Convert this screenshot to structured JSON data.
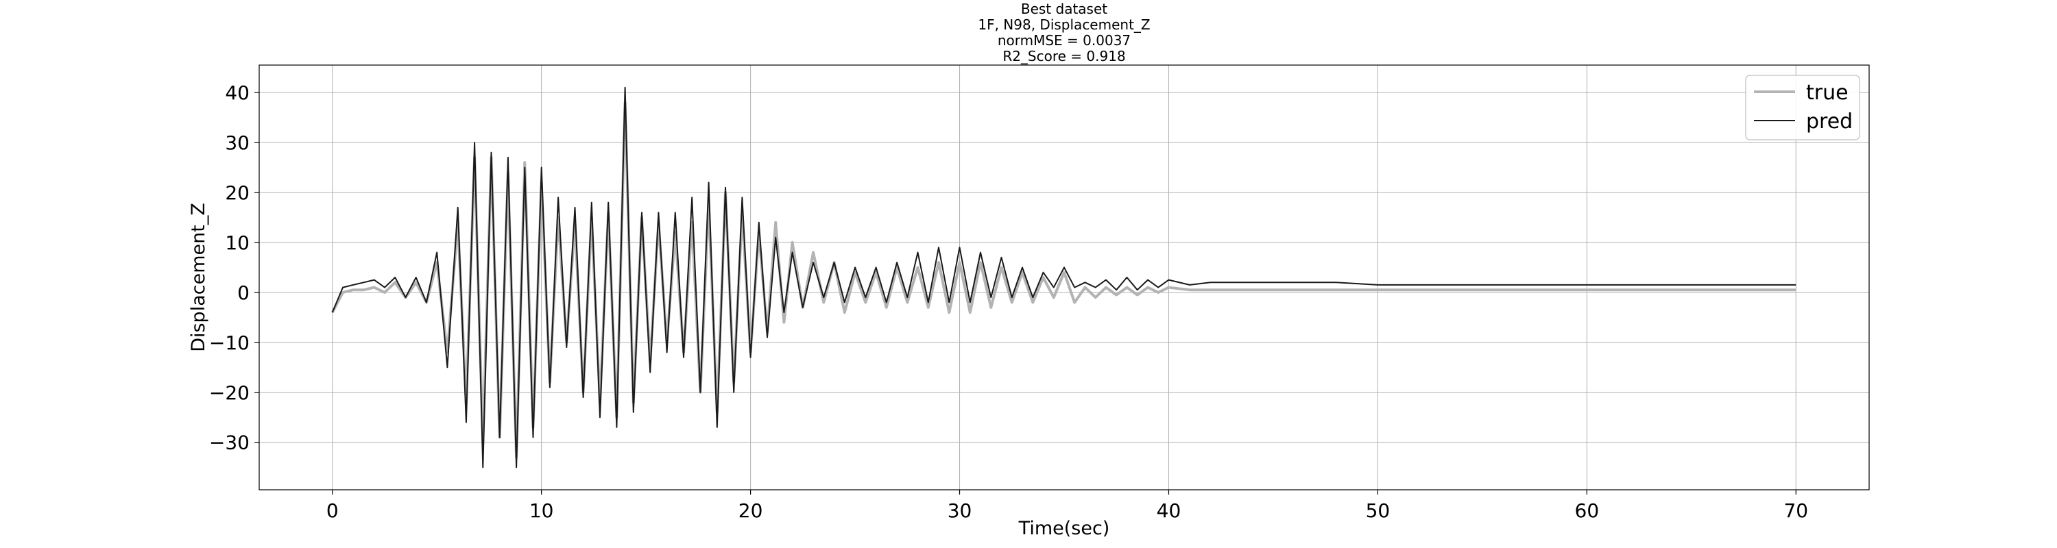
{
  "chart_data": {
    "type": "line",
    "title_lines": [
      "Best dataset",
      "1F, N98, Displacement_Z",
      "normMSE = 0.0037",
      "R2_Score = 0.918"
    ],
    "xlabel": "Time(sec)",
    "ylabel": "Displacement_Z",
    "xlim": [
      -3.5,
      73.5
    ],
    "ylim": [
      -39.5,
      45.5
    ],
    "xticks": [
      0,
      10,
      20,
      30,
      40,
      50,
      60,
      70
    ],
    "yticks": [
      -30,
      -20,
      -10,
      0,
      10,
      20,
      30,
      40
    ],
    "xtick_labels": [
      "0",
      "10",
      "20",
      "30",
      "40",
      "50",
      "60",
      "70"
    ],
    "ytick_labels": [
      "−30",
      "−20",
      "−10",
      "0",
      "10",
      "20",
      "30",
      "40"
    ],
    "grid": true,
    "legend_position": "top-right",
    "series": [
      {
        "name": "true",
        "color": "#b3b3b3",
        "x": [
          0,
          0.5,
          1,
          1.5,
          2,
          2.5,
          3,
          3.5,
          4,
          4.5,
          5,
          5.5,
          6,
          6.4,
          6.8,
          7.2,
          7.6,
          8,
          8.4,
          8.8,
          9.2,
          9.6,
          10,
          10.4,
          10.8,
          11.2,
          11.6,
          12,
          12.4,
          12.8,
          13.2,
          13.6,
          14,
          14.4,
          14.8,
          15.2,
          15.6,
          16,
          16.4,
          16.8,
          17.2,
          17.6,
          18,
          18.4,
          18.8,
          19.2,
          19.6,
          20,
          20.4,
          20.8,
          21.2,
          21.6,
          22,
          22.5,
          23,
          23.5,
          24,
          24.5,
          25,
          25.5,
          26,
          26.5,
          27,
          27.5,
          28,
          28.5,
          29,
          29.5,
          30,
          30.5,
          31,
          31.5,
          32,
          32.5,
          33,
          33.5,
          34,
          34.5,
          35,
          35.5,
          36,
          36.5,
          37,
          37.5,
          38,
          38.5,
          39,
          39.5,
          40,
          41,
          42,
          43,
          44,
          45,
          46,
          48,
          50,
          55,
          60,
          65,
          70
        ],
        "y": [
          -4,
          0,
          0.5,
          0.5,
          1,
          0,
          2,
          -1,
          2,
          -2,
          6,
          -12,
          14,
          -22,
          27,
          -30,
          27,
          -29,
          24,
          -33,
          26,
          -27,
          22,
          -18,
          15,
          -10,
          14,
          -20,
          15,
          -22,
          16,
          -25,
          38,
          -22,
          15,
          -14,
          14,
          -10,
          12,
          -12,
          14,
          -20,
          18,
          -24,
          20,
          -18,
          16,
          -12,
          12,
          -8,
          14,
          -6,
          10,
          -3,
          8,
          -2,
          6,
          -4,
          4,
          -2,
          4,
          -3,
          5,
          -2,
          5,
          -3,
          6,
          -4,
          6,
          -4,
          6,
          -3,
          5,
          -2,
          4,
          -2,
          3,
          -1,
          4,
          -2,
          1,
          -1,
          1,
          -0.5,
          1,
          -0.5,
          1,
          0,
          1,
          0.5,
          0.5,
          0.5,
          0.5,
          0.5,
          0.5,
          0.5,
          0.5,
          0.5,
          0.5,
          0.5,
          0.5
        ]
      },
      {
        "name": "pred",
        "color": "#1a1a1a",
        "x": [
          0,
          0.5,
          1,
          1.5,
          2,
          2.5,
          3,
          3.5,
          4,
          4.5,
          5,
          5.5,
          6,
          6.4,
          6.8,
          7.2,
          7.6,
          8,
          8.4,
          8.8,
          9.2,
          9.6,
          10,
          10.4,
          10.8,
          11.2,
          11.6,
          12,
          12.4,
          12.8,
          13.2,
          13.6,
          14,
          14.4,
          14.8,
          15.2,
          15.6,
          16,
          16.4,
          16.8,
          17.2,
          17.6,
          18,
          18.4,
          18.8,
          19.2,
          19.6,
          20,
          20.4,
          20.8,
          21.2,
          21.6,
          22,
          22.5,
          23,
          23.5,
          24,
          24.5,
          25,
          25.5,
          26,
          26.5,
          27,
          27.5,
          28,
          28.5,
          29,
          29.5,
          30,
          30.5,
          31,
          31.5,
          32,
          32.5,
          33,
          33.5,
          34,
          34.5,
          35,
          35.5,
          36,
          36.5,
          37,
          37.5,
          38,
          38.5,
          39,
          39.5,
          40,
          41,
          42,
          43,
          44,
          45,
          46,
          48,
          50,
          55,
          60,
          65,
          70
        ],
        "y": [
          -4,
          1,
          1.5,
          2,
          2.5,
          1,
          3,
          -1,
          3,
          -2,
          8,
          -15,
          17,
          -26,
          30,
          -35,
          28,
          -29,
          27,
          -35,
          25,
          -29,
          25,
          -19,
          19,
          -11,
          17,
          -21,
          18,
          -25,
          18,
          -27,
          41,
          -24,
          16,
          -16,
          16,
          -12,
          16,
          -13,
          19,
          -20,
          22,
          -27,
          21,
          -20,
          19,
          -13,
          14,
          -9,
          11,
          -4,
          8,
          -3,
          6,
          -1,
          6,
          -2,
          5,
          -1,
          5,
          -2,
          6,
          -1,
          8,
          -2,
          9,
          -2,
          9,
          -2,
          8,
          -1,
          7,
          -1,
          5,
          -1,
          4,
          1,
          5,
          1,
          2,
          1,
          2.5,
          0.5,
          3,
          0.5,
          2.5,
          1,
          2.5,
          1.5,
          2,
          2,
          2,
          2,
          2,
          2,
          1.5,
          1.5,
          1.5,
          1.5,
          1.5
        ]
      }
    ]
  }
}
